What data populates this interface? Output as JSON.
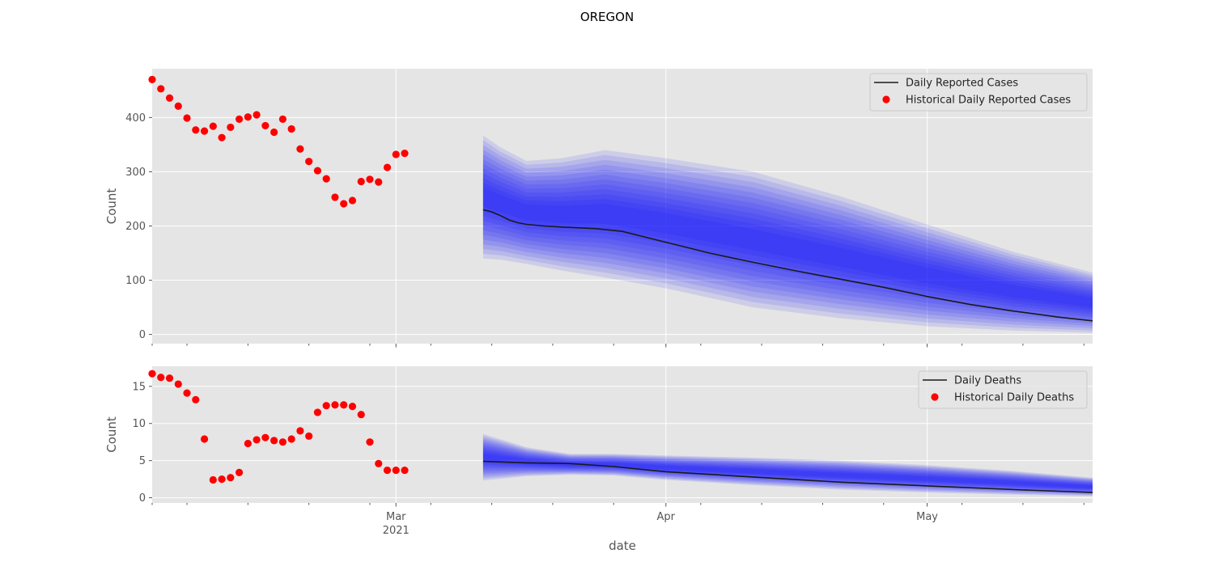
{
  "figure": {
    "title": "OREGON",
    "xlabel": "date"
  },
  "chart_data": [
    {
      "type": "line",
      "ylabel": "Count",
      "ylim": [
        -17,
        490
      ],
      "yticks": [
        0,
        100,
        200,
        300,
        400
      ],
      "xlim": [
        "2021-02-01",
        "2021-05-20"
      ],
      "grid": true,
      "legend_position": "top-right",
      "colors": {
        "line": "#1a1a1a",
        "points": "#ff0000",
        "band": "#0000ff",
        "background": "#e5e5e5"
      },
      "series": [
        {
          "name": "Daily Reported Cases",
          "kind": "line",
          "x": [
            "2021-03-11",
            "2021-03-12",
            "2021-03-13",
            "2021-03-14",
            "2021-03-15",
            "2021-03-16",
            "2021-03-18",
            "2021-03-20",
            "2021-03-24",
            "2021-03-27",
            "2021-04-01",
            "2021-04-06",
            "2021-04-11",
            "2021-04-16",
            "2021-04-21",
            "2021-04-26",
            "2021-05-01",
            "2021-05-06",
            "2021-05-11",
            "2021-05-16",
            "2021-05-20"
          ],
          "values": [
            230,
            226,
            219,
            211,
            206,
            203,
            200,
            198,
            195,
            190,
            170,
            150,
            133,
            117,
            102,
            87,
            70,
            55,
            43,
            32,
            25
          ]
        },
        {
          "name": "Historical Daily Reported Cases",
          "kind": "scatter",
          "x": [
            "2021-02-01",
            "2021-02-02",
            "2021-02-03",
            "2021-02-04",
            "2021-02-05",
            "2021-02-06",
            "2021-02-07",
            "2021-02-08",
            "2021-02-09",
            "2021-02-10",
            "2021-02-11",
            "2021-02-12",
            "2021-02-13",
            "2021-02-14",
            "2021-02-15",
            "2021-02-16",
            "2021-02-17",
            "2021-02-18",
            "2021-02-19",
            "2021-02-20",
            "2021-02-21",
            "2021-02-22",
            "2021-02-23",
            "2021-02-24",
            "2021-02-25",
            "2021-02-26",
            "2021-02-27",
            "2021-02-28",
            "2021-03-01",
            "2021-03-02",
            "2021-03-03",
            "2021-03-04",
            "2021-03-05",
            "2021-03-06",
            "2021-03-07",
            "2021-03-08",
            "2021-03-09",
            "2021-03-10"
          ],
          "values": [
            470,
            453,
            436,
            421,
            399,
            377,
            375,
            384,
            363,
            382,
            397,
            401,
            405,
            385,
            373,
            397,
            379,
            342,
            319,
            302,
            287,
            253,
            241,
            247,
            282,
            286,
            281,
            308,
            332,
            334,
            null,
            null,
            null,
            null,
            null,
            null,
            null,
            null
          ]
        }
      ],
      "uncertainty_band": {
        "x": [
          "2021-03-11",
          "2021-03-13",
          "2021-03-16",
          "2021-03-20",
          "2021-03-25",
          "2021-04-01",
          "2021-04-11",
          "2021-04-21",
          "2021-05-01",
          "2021-05-11",
          "2021-05-20"
        ],
        "upper": [
          367,
          345,
          320,
          325,
          340,
          325,
          300,
          255,
          203,
          152,
          114
        ],
        "lower": [
          140,
          138,
          130,
          118,
          105,
          85,
          50,
          30,
          15,
          7,
          3
        ]
      }
    },
    {
      "type": "line",
      "ylabel": "Count",
      "ylim": [
        -0.7,
        17.7
      ],
      "yticks": [
        0,
        5,
        10,
        15
      ],
      "xlim": [
        "2021-02-01",
        "2021-05-20"
      ],
      "xticks_major": [
        "Mar\n2021",
        "Apr",
        "May"
      ],
      "grid": true,
      "legend_position": "top-right",
      "colors": {
        "line": "#1a1a1a",
        "points": "#ff0000",
        "band": "#0000ff",
        "background": "#e5e5e5"
      },
      "series": [
        {
          "name": "Daily Deaths",
          "kind": "line",
          "x": [
            "2021-03-11",
            "2021-03-16",
            "2021-03-21",
            "2021-03-26",
            "2021-04-01",
            "2021-04-11",
            "2021-04-21",
            "2021-05-01",
            "2021-05-11",
            "2021-05-20"
          ],
          "values": [
            4.9,
            4.7,
            4.6,
            4.2,
            3.5,
            2.8,
            2.1,
            1.6,
            1.1,
            0.7
          ]
        },
        {
          "name": "Historical Daily Deaths",
          "kind": "scatter",
          "x": [
            "2021-02-01",
            "2021-02-02",
            "2021-02-03",
            "2021-02-04",
            "2021-02-05",
            "2021-02-06",
            "2021-02-07",
            "2021-02-08",
            "2021-02-09",
            "2021-02-10",
            "2021-02-11",
            "2021-02-12",
            "2021-02-13",
            "2021-02-14",
            "2021-02-15",
            "2021-02-16",
            "2021-02-17",
            "2021-02-18",
            "2021-02-19",
            "2021-02-20",
            "2021-02-21",
            "2021-02-22",
            "2021-02-23",
            "2021-02-24",
            "2021-02-25",
            "2021-02-26",
            "2021-02-27",
            "2021-02-28",
            "2021-03-01",
            "2021-03-02",
            "2021-03-03"
          ],
          "values": [
            16.7,
            16.2,
            16.1,
            15.3,
            14.1,
            13.2,
            7.9,
            2.4,
            2.5,
            2.7,
            3.4,
            7.3,
            7.8,
            8.1,
            7.7,
            7.5,
            7.9,
            9.0,
            8.3,
            11.5,
            12.4,
            12.5,
            12.5,
            12.3,
            11.2,
            7.5,
            4.6,
            3.7,
            3.7,
            3.7,
            null
          ]
        }
      ],
      "uncertainty_band": {
        "x": [
          "2021-03-11",
          "2021-03-16",
          "2021-03-21",
          "2021-03-26",
          "2021-04-01",
          "2021-04-11",
          "2021-04-21",
          "2021-05-01",
          "2021-05-11",
          "2021-05-20"
        ],
        "upper": [
          8.6,
          6.8,
          5.9,
          5.9,
          5.7,
          5.4,
          5.0,
          4.4,
          3.6,
          2.7
        ],
        "lower": [
          2.3,
          2.9,
          3.1,
          3.0,
          2.4,
          1.7,
          1.1,
          0.7,
          0.4,
          0.2
        ]
      }
    }
  ],
  "xaxis": {
    "major_ticks": [
      {
        "date": "2021-03-01",
        "label": "Mar",
        "sublabel": "2021"
      },
      {
        "date": "2021-04-01",
        "label": "Apr",
        "sublabel": ""
      },
      {
        "date": "2021-05-01",
        "label": "May",
        "sublabel": ""
      }
    ],
    "minor_tick_dates": [
      "2021-02-01",
      "2021-02-05",
      "2021-02-12",
      "2021-02-19",
      "2021-02-26",
      "2021-03-05",
      "2021-03-12",
      "2021-03-19",
      "2021-03-26",
      "2021-04-05",
      "2021-04-12",
      "2021-04-19",
      "2021-04-26",
      "2021-05-05",
      "2021-05-12",
      "2021-05-19"
    ]
  }
}
